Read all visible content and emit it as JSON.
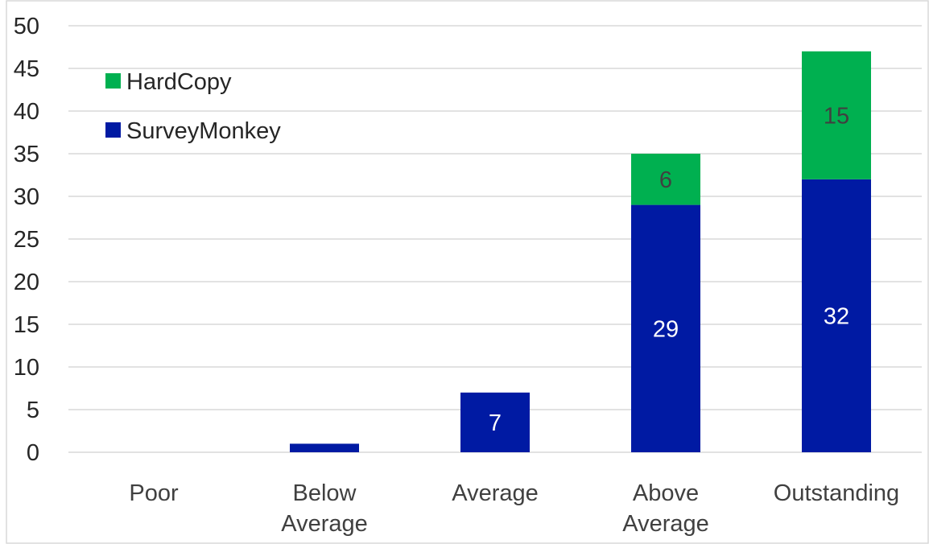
{
  "chart_data": {
    "type": "bar",
    "stacked": true,
    "categories": [
      "Poor",
      "Below Average",
      "Average",
      "Above Average",
      "Outstanding"
    ],
    "category_lines": [
      [
        "Poor"
      ],
      [
        "Below",
        "Average"
      ],
      [
        "Average"
      ],
      [
        "Above",
        "Average"
      ],
      [
        "Outstanding"
      ]
    ],
    "series": [
      {
        "name": "SurveyMonkey",
        "color": "#001aa3",
        "label_color": "#ffffff",
        "values": [
          0,
          1,
          7,
          29,
          32
        ],
        "labels": [
          "",
          "",
          "7",
          "29",
          "32"
        ]
      },
      {
        "name": "HardCopy",
        "color": "#00b050",
        "label_color": "#404040",
        "values": [
          0,
          0,
          0,
          6,
          15
        ],
        "labels": [
          "",
          "",
          "",
          "6",
          "15"
        ]
      }
    ],
    "legend_order": [
      "HardCopy",
      "SurveyMonkey"
    ],
    "legend_position": "top-left",
    "ylim": [
      0,
      50
    ],
    "yticks": [
      "0",
      "5",
      "10",
      "15",
      "20",
      "25",
      "30",
      "35",
      "40",
      "45",
      "50"
    ],
    "grid": true,
    "title": "",
    "xlabel": "",
    "ylabel": ""
  }
}
